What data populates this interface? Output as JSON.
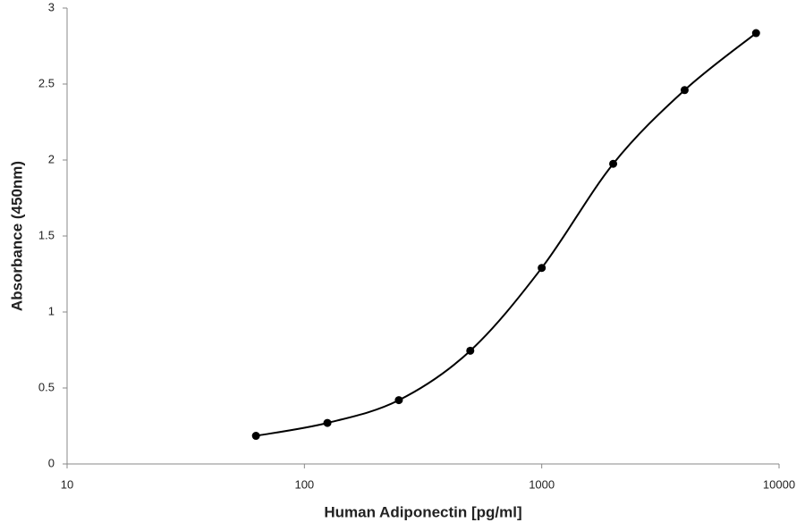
{
  "chart_data": {
    "type": "line",
    "x_label": "Human Adiponectin [pg/ml]",
    "y_label": "Absorbance (450nm)",
    "x_scale": "log",
    "x": [
      62.5,
      125,
      250,
      500,
      1000,
      2000,
      4000,
      8000
    ],
    "series": [
      {
        "color": "#000000",
        "values": [
          0.185,
          0.27,
          0.42,
          0.745,
          1.29,
          1.975,
          2.46,
          2.835
        ]
      }
    ],
    "xlim": [
      10,
      10000
    ],
    "xticks": [
      10,
      100,
      1000,
      10000
    ],
    "ylim": [
      0,
      3
    ],
    "yticks": [
      0,
      0.5,
      1,
      1.5,
      2,
      2.5,
      3
    ],
    "grid": false
  }
}
